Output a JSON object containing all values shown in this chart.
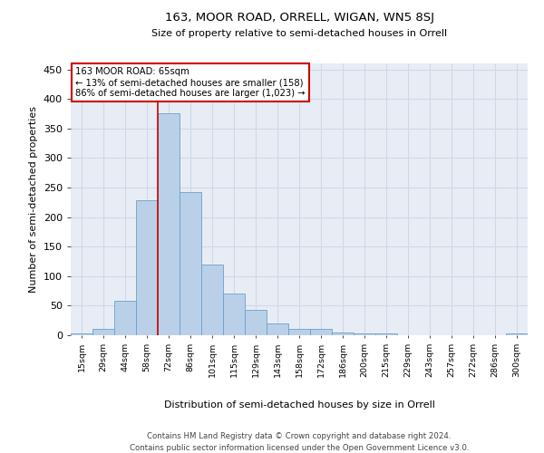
{
  "title": "163, MOOR ROAD, ORRELL, WIGAN, WN5 8SJ",
  "subtitle": "Size of property relative to semi-detached houses in Orrell",
  "xlabel": "Distribution of semi-detached houses by size in Orrell",
  "ylabel": "Number of semi-detached properties",
  "bar_color": "#bad0e8",
  "bar_edge_color": "#6aa0cc",
  "bg_color": "#e8edf5",
  "grid_color": "#d0d8e8",
  "annotation_label": "163 MOOR ROAD: 65sqm",
  "annotation_smaller": "← 13% of semi-detached houses are smaller (158)",
  "annotation_larger": "86% of semi-detached houses are larger (1,023) →",
  "footer1": "Contains HM Land Registry data © Crown copyright and database right 2024.",
  "footer2": "Contains public sector information licensed under the Open Government Licence v3.0.",
  "bin_labels": [
    "15sqm",
    "29sqm",
    "44sqm",
    "58sqm",
    "72sqm",
    "86sqm",
    "101sqm",
    "115sqm",
    "129sqm",
    "143sqm",
    "158sqm",
    "172sqm",
    "186sqm",
    "200sqm",
    "215sqm",
    "229sqm",
    "243sqm",
    "257sqm",
    "272sqm",
    "286sqm",
    "300sqm"
  ],
  "bar_heights": [
    3,
    10,
    58,
    228,
    375,
    242,
    120,
    70,
    43,
    20,
    10,
    10,
    5,
    3,
    3,
    0,
    0,
    0,
    0,
    0,
    3
  ],
  "property_line_index": 4,
  "ylim": [
    0,
    460
  ],
  "yticks": [
    0,
    50,
    100,
    150,
    200,
    250,
    300,
    350,
    400,
    450
  ]
}
